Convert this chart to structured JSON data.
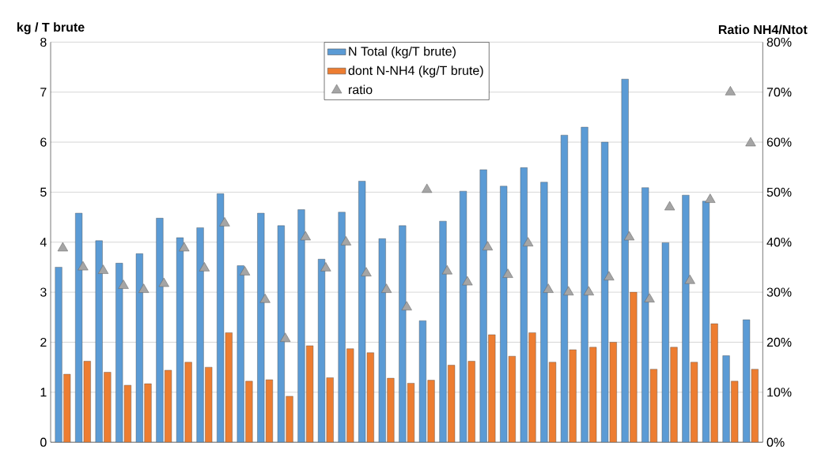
{
  "chart_data": {
    "type": "bar",
    "ylabel": "kg / T brute",
    "y2label": "Ratio NH4/Ntot",
    "categories": [
      null,
      null,
      null,
      null,
      null,
      null,
      null,
      null,
      null,
      null,
      null,
      null,
      null,
      null,
      null,
      null,
      null,
      null,
      null,
      null,
      null,
      null,
      null,
      null,
      null,
      null,
      null,
      null,
      null,
      null,
      null,
      null,
      null,
      null,
      null
    ],
    "series": [
      {
        "name": "N Total (kg/T brute)",
        "color": "#5b9bd5",
        "values": [
          3.5,
          4.58,
          4.03,
          3.58,
          3.77,
          4.48,
          4.09,
          4.29,
          4.97,
          3.53,
          4.58,
          4.33,
          4.65,
          3.66,
          4.6,
          5.22,
          4.07,
          4.33,
          2.43,
          4.42,
          5.02,
          5.45,
          5.12,
          5.49,
          5.2,
          6.14,
          6.3,
          6.0,
          7.26,
          5.09,
          3.99,
          4.94,
          4.82,
          1.73,
          2.45
        ]
      },
      {
        "name": "dont N-NH4 (kg/T brute)",
        "color": "#ed7d31",
        "values": [
          1.36,
          1.62,
          1.4,
          1.14,
          1.17,
          1.44,
          1.6,
          1.5,
          2.19,
          1.22,
          1.25,
          0.92,
          1.93,
          1.29,
          1.87,
          1.79,
          1.28,
          1.18,
          1.24,
          1.54,
          1.62,
          2.15,
          1.72,
          2.19,
          1.6,
          1.85,
          1.9,
          2.0,
          3.0,
          1.46,
          1.9,
          1.6,
          2.37,
          1.22,
          1.46
        ]
      },
      {
        "name": "ratio",
        "type": "scatter",
        "axis": "y2",
        "marker": "triangle",
        "color": "#a5a5a5",
        "values": [
          38.8,
          35,
          34.3,
          31.3,
          30.5,
          31.7,
          38.8,
          34.8,
          43.8,
          34,
          28.5,
          20.7,
          41,
          34.8,
          40,
          33.8,
          30.5,
          27,
          50.5,
          34.2,
          32,
          39,
          33.5,
          39.8,
          30.5,
          30,
          30,
          33,
          41,
          28.6,
          47,
          32.3,
          48.5,
          70,
          59.8
        ]
      }
    ],
    "ylim": [
      0,
      8
    ],
    "yticks": [
      0,
      1,
      2,
      3,
      4,
      5,
      6,
      7,
      8
    ],
    "y2lim": [
      0,
      80
    ],
    "y2ticks": [
      {
        "value": 0,
        "label": "0%"
      },
      {
        "value": 10,
        "label": "10%"
      },
      {
        "value": 20,
        "label": "20%"
      },
      {
        "value": 30,
        "label": "30%"
      },
      {
        "value": 40,
        "label": "40%"
      },
      {
        "value": 50,
        "label": "50%"
      },
      {
        "value": 60,
        "label": "60%"
      },
      {
        "value": 70,
        "label": "70%"
      },
      {
        "value": 80,
        "label": "80%"
      }
    ],
    "grid": "y",
    "legend": "top"
  }
}
